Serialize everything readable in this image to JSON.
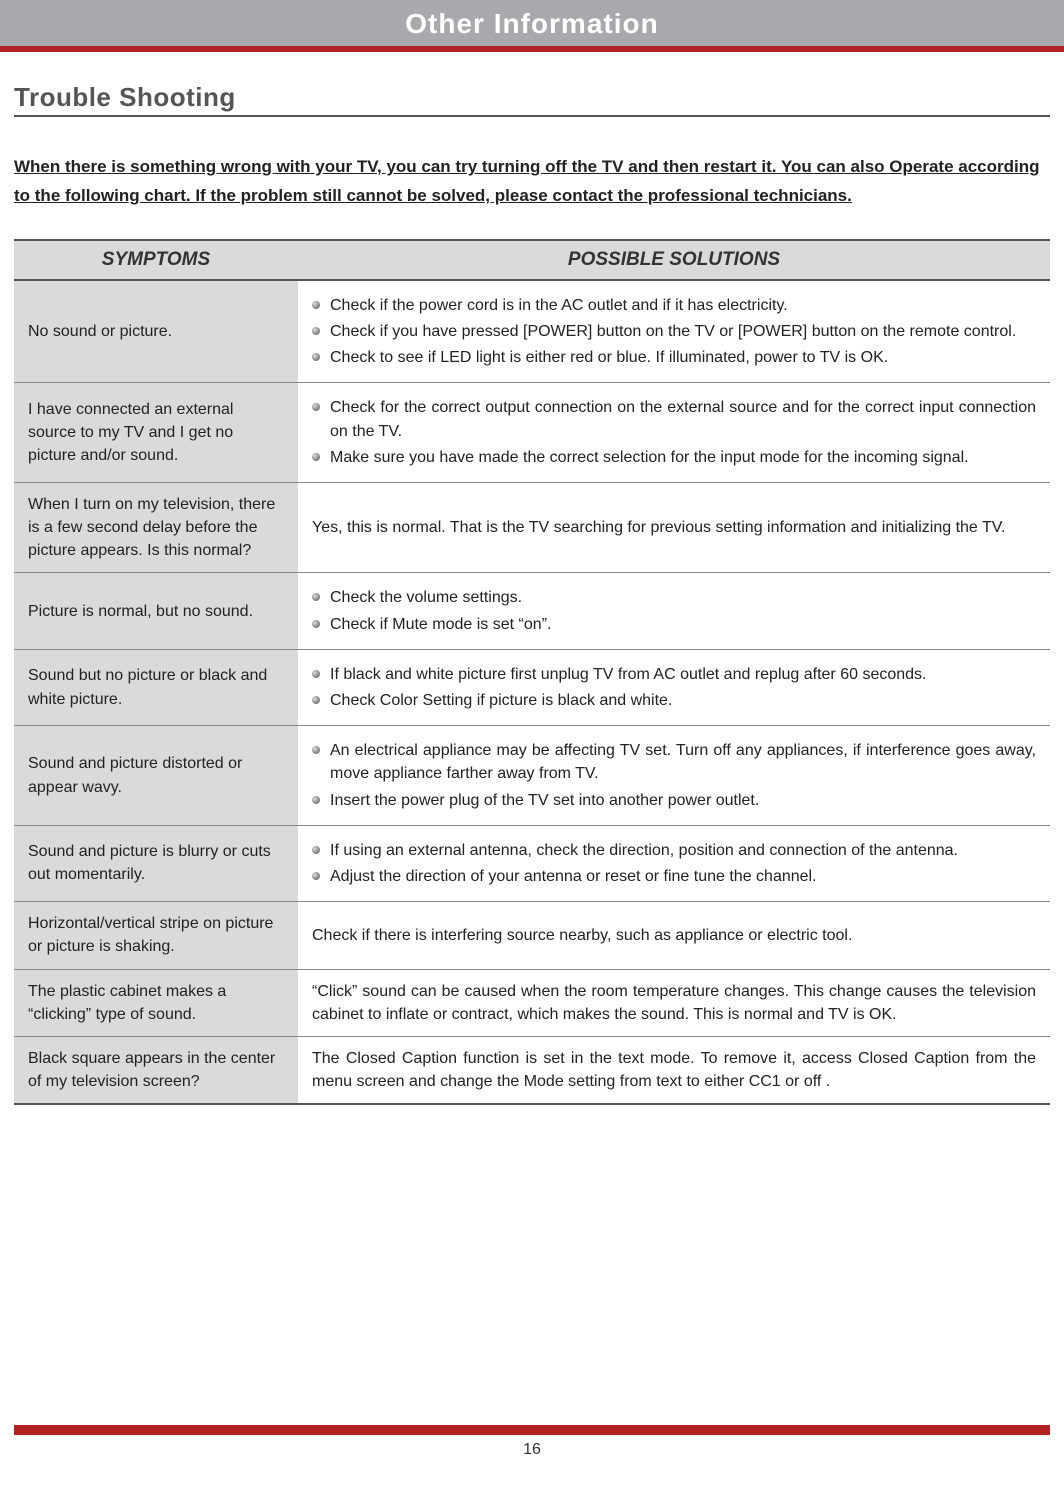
{
  "header": {
    "title": "Other Information"
  },
  "section": {
    "title": "Trouble Shooting"
  },
  "intro": "When there is something wrong with your TV, you can try turning off the TV and then restart it. You can also Operate according to the following chart. If the problem still cannot be solved, please contact the professional technicians.",
  "table": {
    "headers": {
      "symptoms": "SYMPTOMS",
      "solutions": "POSSIBLE SOLUTIONS"
    },
    "rows": [
      {
        "symptom": "No sound or picture.",
        "bullets": [
          "Check if the power cord is in the AC outlet and if it has electricity.",
          "Check if you have pressed [POWER] button on the TV or [POWER] button on the remote control.",
          "Check to see if LED light is either red or blue. If illuminated, power to TV is OK."
        ]
      },
      {
        "symptom": "I have connected an external source to my TV and I get no picture and/or sound.",
        "bullets": [
          "Check for the correct output connection on the external source and for the correct input connection on the TV.",
          "Make sure you have made the correct selection for the input mode for the incoming signal."
        ]
      },
      {
        "symptom": "When I turn on my television, there is a few second delay before the picture appears. Is this normal?",
        "text": "Yes, this is normal. That is the TV searching for previous setting information and initializing the TV."
      },
      {
        "symptom": "Picture is normal, but no sound.",
        "bullets": [
          "Check the volume settings.",
          "Check if Mute mode is set “on”."
        ]
      },
      {
        "symptom": "Sound but no picture or black and white picture.",
        "bullets": [
          "If black and white picture first unplug TV from AC outlet and replug after 60 seconds.",
          "Check Color Setting if picture is black and white."
        ]
      },
      {
        "symptom": "Sound and picture distorted or appear wavy.",
        "bullets": [
          "An electrical appliance may be affecting TV set. Turn off any appliances, if interference goes away, move appliance farther away from TV.",
          "Insert the power plug of the TV set into another power outlet."
        ]
      },
      {
        "symptom": "Sound and picture is blurry or cuts out momentarily.",
        "bullets": [
          "If using an external antenna, check the direction, position and connection of the antenna.",
          "Adjust the direction of your antenna or reset or fine tune the channel."
        ]
      },
      {
        "symptom": "Horizontal/vertical stripe on picture or picture is shaking.",
        "text": "Check if there is interfering source nearby, such as appliance or electric tool."
      },
      {
        "symptom": "The plastic cabinet makes a “clicking” type of sound.",
        "text": "“Click” sound can be caused when the room temperature changes. This change causes the television cabinet to inflate or contract, which makes the sound. This is normal and TV is OK."
      },
      {
        "symptom": "Black square appears in the center of my television screen?",
        "text": "The Closed Caption function is set in the text mode. To remove it, access Closed Caption from the menu screen and change the Mode setting from text to either CC1 or off ."
      }
    ]
  },
  "colors": {
    "header_bg": "#a7a9ac",
    "header_text": "#ffffff",
    "rule_red": "#b22222",
    "table_header_bg": "#d9dadb",
    "symptom_bg": "#d9dadb",
    "border": "#888888",
    "text": "#222222"
  },
  "page_number": "16"
}
